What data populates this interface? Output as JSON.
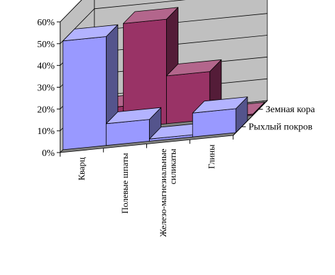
{
  "chart_data": {
    "type": "bar",
    "subtype": "3d-clustered-depth",
    "categories": [
      "Кварц",
      "Полевые шпаты",
      "Железо-магнезиальные силикаты",
      "Глины"
    ],
    "category_lines": [
      [
        "Кварц"
      ],
      [
        "Полевые шпаты"
      ],
      [
        "Железо-магнезиальные",
        "силикаты"
      ],
      [
        "Глины"
      ]
    ],
    "series": [
      {
        "name": "Рыхлый покров",
        "values": [
          50,
          10,
          1,
          11
        ],
        "color": "#9999ff"
      },
      {
        "name": "Земная кора",
        "values": [
          10,
          48,
          22,
          0.5
        ],
        "color": "#993366"
      }
    ],
    "ylim": [
      0,
      60
    ],
    "yticks": [
      "0%",
      "10%",
      "20%",
      "30%",
      "40%",
      "50%",
      "60%"
    ],
    "grid": true,
    "legend": "depth-axis labels on right"
  }
}
